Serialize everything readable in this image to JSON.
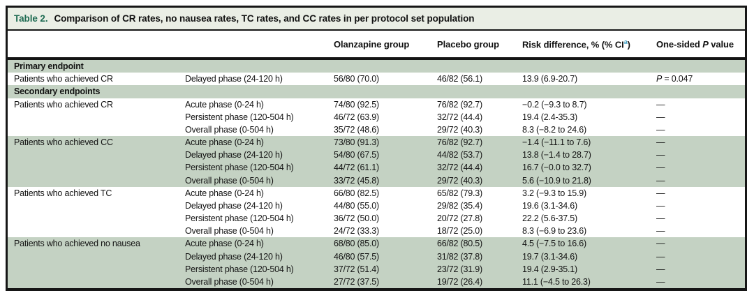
{
  "table_title": {
    "label": "Table 2.",
    "text": "Comparison of CR rates, no nausea rates, TC rates, and CC rates in per protocol set population"
  },
  "columns": {
    "endpoint": "",
    "phase": "",
    "olanzapine": "Olanzapine group",
    "placebo": "Placebo group",
    "risk_prefix": "Risk difference, % (% CI",
    "risk_superscript": "a",
    "risk_suffix": ")",
    "pvalue_prefix": "One-sided ",
    "pvalue_italic": "P",
    "pvalue_suffix": " value"
  },
  "sections": {
    "primary": "Primary endpoint",
    "secondary": "Secondary endpoints"
  },
  "colors": {
    "band_green": "#c4d2c3",
    "title_bar_bg": "#eaeee5",
    "title_label_green": "#1e6b52",
    "superscript_blue": "#3f9fc4",
    "border_black": "#161616"
  },
  "rows": [
    {
      "endpoint": "Patients who achieved CR",
      "phase": "Delayed phase (24-120 h)",
      "olanzapine": "56/80 (70.0)",
      "placebo": "46/82 (56.1)",
      "risk": "13.9 (6.9-20.7)",
      "p_italic": "P",
      "p_rest": " = 0.047"
    },
    {
      "endpoint": "Patients who achieved CR",
      "phase": "Acute phase (0-24 h)",
      "olanzapine": "74/80 (92.5)",
      "placebo": "76/82 (92.7)",
      "risk": "−0.2 (−9.3 to 8.7)",
      "p": "—"
    },
    {
      "endpoint": "",
      "phase": "Persistent phase (120-504 h)",
      "olanzapine": "46/72 (63.9)",
      "placebo": "32/72 (44.4)",
      "risk": "19.4 (2.4-35.3)",
      "p": "—"
    },
    {
      "endpoint": "",
      "phase": "Overall phase (0-504 h)",
      "olanzapine": "35/72 (48.6)",
      "placebo": "29/72 (40.3)",
      "risk": "8.3 (−8.2 to 24.6)",
      "p": "—"
    },
    {
      "endpoint": "Patients who achieved CC",
      "phase": "Acute phase (0-24 h)",
      "olanzapine": "73/80 (91.3)",
      "placebo": "76/82 (92.7)",
      "risk": "−1.4 (−11.1 to 7.6)",
      "p": "—"
    },
    {
      "endpoint": "",
      "phase": "Delayed phase (24-120 h)",
      "olanzapine": "54/80 (67.5)",
      "placebo": "44/82 (53.7)",
      "risk": "13.8 (−1.4 to 28.7)",
      "p": "—"
    },
    {
      "endpoint": "",
      "phase": "Persistent phase (120-504 h)",
      "olanzapine": "44/72 (61.1)",
      "placebo": "32/72 (44.4)",
      "risk": "16.7 (−0.0 to 32.7)",
      "p": "—"
    },
    {
      "endpoint": "",
      "phase": "Overall phase (0-504 h)",
      "olanzapine": "33/72 (45.8)",
      "placebo": "29/72 (40.3)",
      "risk": "5.6 (−10.9 to 21.8)",
      "p": "—"
    },
    {
      "endpoint": "Patients who achieved TC",
      "phase": "Acute phase (0-24 h)",
      "olanzapine": "66/80 (82.5)",
      "placebo": "65/82 (79.3)",
      "risk": "3.2 (−9.3 to 15.9)",
      "p": "—"
    },
    {
      "endpoint": "",
      "phase": "Delayed phase (24-120 h)",
      "olanzapine": "44/80 (55.0)",
      "placebo": "29/82 (35.4)",
      "risk": "19.6 (3.1-34.6)",
      "p": "—"
    },
    {
      "endpoint": "",
      "phase": "Persistent phase (120-504 h)",
      "olanzapine": "36/72 (50.0)",
      "placebo": "20/72 (27.8)",
      "risk": "22.2 (5.6-37.5)",
      "p": "—"
    },
    {
      "endpoint": "",
      "phase": "Overall phase (0-504 h)",
      "olanzapine": "24/72 (33.3)",
      "placebo": "18/72 (25.0)",
      "risk": "8.3 (−6.9 to 23.6)",
      "p": "—"
    },
    {
      "endpoint": "Patients who achieved no nausea",
      "phase": "Acute phase (0-24 h)",
      "olanzapine": "68/80 (85.0)",
      "placebo": "66/82 (80.5)",
      "risk": "4.5 (−7.5 to 16.6)",
      "p": "—"
    },
    {
      "endpoint": "",
      "phase": "Delayed phase (24-120 h)",
      "olanzapine": "46/80 (57.5)",
      "placebo": "31/82 (37.8)",
      "risk": "19.7 (3.1-34.6)",
      "p": "—"
    },
    {
      "endpoint": "",
      "phase": "Persistent phase (120-504 h)",
      "olanzapine": "37/72 (51.4)",
      "placebo": "23/72 (31.9)",
      "risk": "19.4 (2.9-35.1)",
      "p": "—"
    },
    {
      "endpoint": "",
      "phase": "Overall phase (0-504 h)",
      "olanzapine": "27/72 (37.5)",
      "placebo": "19/72 (26.4)",
      "risk": "11.1 (−4.5 to 26.3)",
      "p": "—"
    }
  ]
}
